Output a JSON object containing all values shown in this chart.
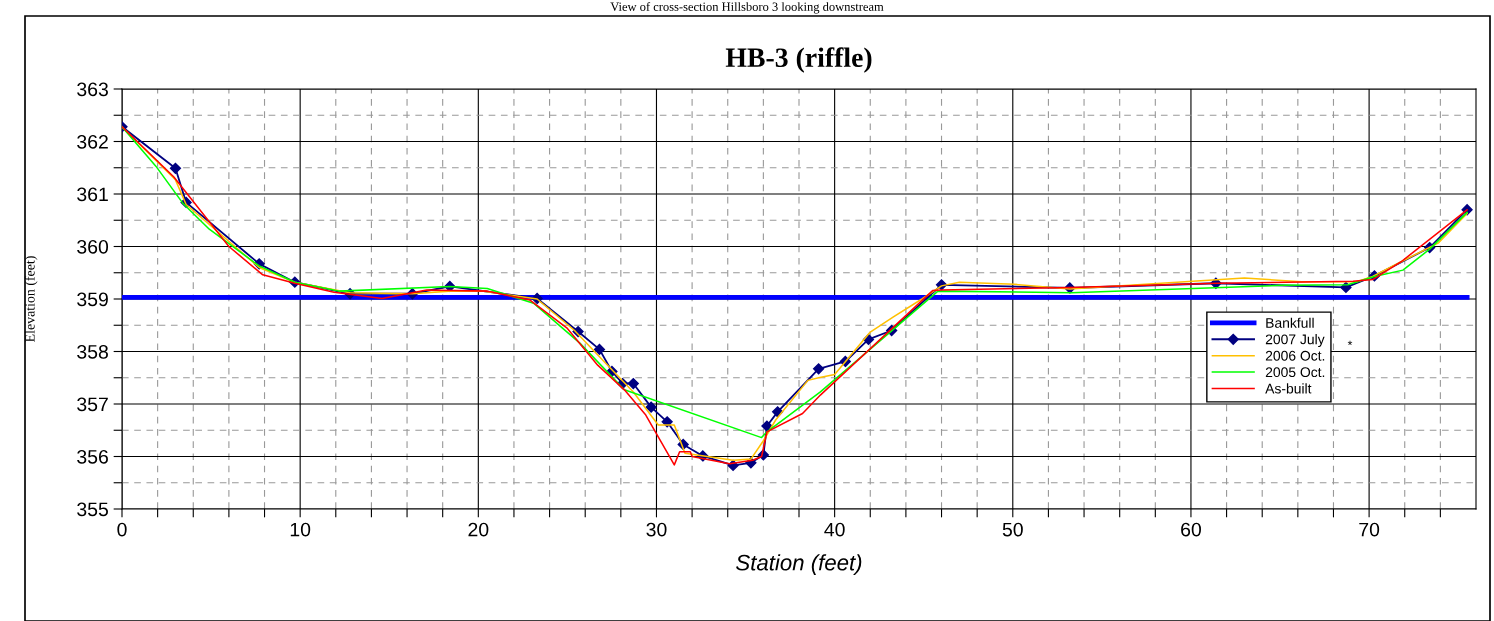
{
  "chart_data": {
    "type": "line",
    "title": "HB-3 (riffle)",
    "xlabel": "Station (feet)",
    "ylabel": "Elevation (feet)",
    "annotations": [
      "View of cross-section Hillsboro 3 looking downstream",
      "*"
    ],
    "xlim": [
      0,
      76
    ],
    "ylim": [
      355,
      363
    ],
    "xticks": [
      0,
      {
        "value": 2,
        "label": null
      },
      {
        "value": 4,
        "label": null
      },
      {
        "value": 6,
        "label": null
      },
      {
        "value": 8,
        "label": null
      },
      10,
      {
        "value": 12,
        "label": null
      },
      {
        "value": 14,
        "label": null
      },
      {
        "value": 16,
        "label": null
      },
      {
        "value": 18,
        "label": null
      },
      20,
      {
        "value": 22,
        "label": null
      },
      {
        "value": 24,
        "label": null
      },
      {
        "value": 26,
        "label": null
      },
      {
        "value": 28,
        "label": null
      },
      30,
      {
        "value": 32,
        "label": null
      },
      {
        "value": 34,
        "label": null
      },
      {
        "value": 36,
        "label": null
      },
      {
        "value": 38,
        "label": null
      },
      40,
      {
        "value": 42,
        "label": null
      },
      {
        "value": 44,
        "label": null
      },
      {
        "value": 46,
        "label": null
      },
      {
        "value": 48,
        "label": null
      },
      50,
      {
        "value": 52,
        "label": null
      },
      {
        "value": 54,
        "label": null
      },
      {
        "value": 56,
        "label": null
      },
      {
        "value": 58,
        "label": null
      },
      60,
      {
        "value": 62,
        "label": null
      },
      {
        "value": 64,
        "label": null
      },
      {
        "value": 66,
        "label": null
      },
      {
        "value": 68,
        "label": null
      },
      70,
      {
        "value": 72,
        "label": null
      },
      {
        "value": 74,
        "label": null
      }
    ],
    "yticks": [
      355,
      {
        "value": 355.5,
        "label": null
      },
      356,
      {
        "value": 356.5,
        "label": null
      },
      357,
      {
        "value": 357.5,
        "label": null
      },
      358,
      {
        "value": 358.5,
        "label": null
      },
      359,
      {
        "value": 359.5,
        "label": null
      },
      360,
      {
        "value": 360.5,
        "label": null
      },
      361,
      {
        "value": 361.5,
        "label": null
      },
      362,
      {
        "value": 362.5,
        "label": null
      },
      363
    ],
    "grid": true,
    "legend": "right",
    "series": [
      {
        "name": "Bankfull",
        "color": "#0000ff",
        "x": [
          0,
          75.5
        ],
        "values": [
          359.03,
          359.03
        ]
      },
      {
        "name": "2007 July",
        "color": "#000080",
        "marker": "diamond",
        "x": [
          0,
          3.0,
          3.6,
          7.7,
          9.7,
          12.8,
          16.3,
          18.4,
          23.3,
          25.6,
          26.8,
          27.5,
          28.1,
          28.7,
          29.7,
          30.6,
          31.5,
          32.6,
          34.3,
          35.3,
          36.0,
          36.2,
          36.8,
          39.1,
          40.6,
          41.9,
          43.2,
          46.0,
          53.2,
          61.4,
          68.7,
          70.3,
          73.4,
          75.5
        ],
        "values": [
          362.28,
          361.49,
          360.84,
          359.67,
          359.32,
          359.1,
          359.1,
          359.24,
          359.01,
          358.38,
          358.04,
          357.62,
          357.39,
          357.39,
          356.94,
          356.66,
          356.23,
          356.01,
          355.83,
          355.88,
          356.03,
          356.58,
          356.85,
          357.67,
          357.81,
          358.23,
          358.4,
          359.27,
          359.21,
          359.3,
          359.22,
          359.44,
          359.98,
          360.7
        ]
      },
      {
        "name": "2006 Oct.",
        "color": "#ffc000",
        "x": [
          0,
          3.0,
          3.6,
          7.7,
          9.7,
          12.8,
          16.3,
          18.4,
          20.3,
          23.3,
          25.4,
          26.8,
          28.7,
          30.1,
          31.0,
          31.6,
          34.3,
          35.3,
          36.0,
          36.7,
          38.5,
          39.1,
          40.0,
          42.0,
          43.3,
          44.9,
          46.0,
          47.0,
          50.1,
          53.2,
          63.0,
          66.2,
          69.3,
          70.2,
          71.8,
          73.9,
          75.5
        ],
        "values": [
          362.28,
          361.27,
          360.8,
          359.6,
          359.32,
          359.12,
          359.1,
          359.15,
          359.15,
          359.0,
          358.4,
          357.9,
          357.23,
          356.6,
          356.6,
          356.06,
          355.93,
          355.95,
          356.3,
          356.7,
          357.45,
          357.5,
          357.56,
          358.37,
          358.66,
          359.0,
          359.25,
          359.32,
          359.28,
          359.19,
          359.4,
          359.33,
          359.33,
          359.43,
          359.71,
          360.07,
          360.63
        ]
      },
      {
        "name": "2005 Oct.",
        "color": "#00ff00",
        "x": [
          0,
          1.9,
          3.4,
          4.9,
          7.7,
          9.7,
          12.2,
          18.4,
          20.5,
          23.1,
          25.7,
          28.2,
          35.9,
          36.2,
          39.2,
          45.8,
          53.3,
          65.1,
          68.8,
          70.3,
          71.9,
          73.4,
          75.5
        ],
        "values": [
          362.28,
          361.53,
          360.83,
          360.33,
          359.63,
          359.32,
          359.15,
          359.24,
          359.2,
          358.92,
          358.16,
          357.27,
          356.36,
          356.47,
          357.23,
          359.15,
          359.12,
          359.26,
          359.27,
          359.43,
          359.55,
          359.95,
          360.65
        ]
      },
      {
        "name": "As-built",
        "color": "#ff0000",
        "x": [
          0,
          2.9,
          6.0,
          7.9,
          9.7,
          11.9,
          14.6,
          17.1,
          20.5,
          22.9,
          25.0,
          26.7,
          28.2,
          29.4,
          31.0,
          31.3,
          31.9,
          32.0,
          34.1,
          35.4,
          35.9,
          36.2,
          38.2,
          39.2,
          45.5,
          46.0,
          53.2,
          61.5,
          69.1,
          70.2,
          71.8,
          75.5
        ],
        "values": [
          362.28,
          361.33,
          360.0,
          359.46,
          359.3,
          359.13,
          359.01,
          359.17,
          359.15,
          358.98,
          358.44,
          357.74,
          357.27,
          356.79,
          355.84,
          356.09,
          356.09,
          356.0,
          355.86,
          355.93,
          356.0,
          356.47,
          356.82,
          357.17,
          359.16,
          359.17,
          359.22,
          359.3,
          359.34,
          359.37,
          359.71,
          360.7
        ]
      }
    ]
  }
}
